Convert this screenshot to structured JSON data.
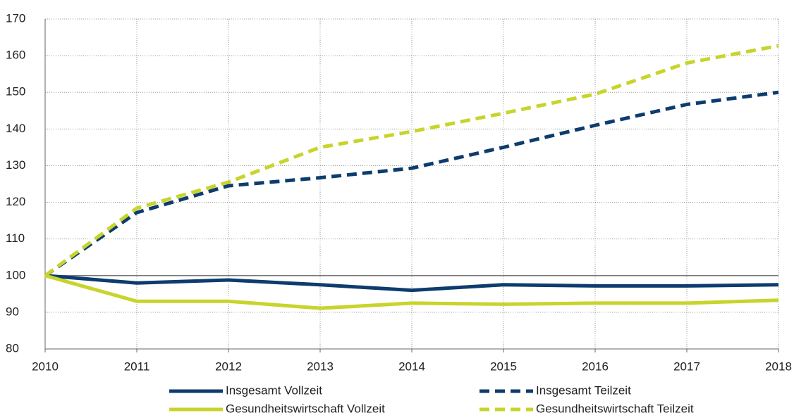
{
  "chart_data": {
    "type": "line",
    "categories": [
      "2010",
      "2011",
      "2012",
      "2013",
      "2014",
      "2015",
      "2016",
      "2017",
      "2018"
    ],
    "series": [
      {
        "name": "Insgesamt Vollzeit",
        "color": "#0d3c6e",
        "dashed": false,
        "values": [
          100,
          98.0,
          98.8,
          97.5,
          96.0,
          97.5,
          97.2,
          97.2,
          97.5
        ]
      },
      {
        "name": "Insgesamt Teilzeit",
        "color": "#0d3c6e",
        "dashed": true,
        "values": [
          100,
          117.2,
          124.5,
          126.7,
          129.3,
          135.0,
          141.0,
          146.7,
          150.0
        ]
      },
      {
        "name": "Gesundheitswirtschaft Vollzeit",
        "color": "#c8d42b",
        "dashed": false,
        "values": [
          100,
          93.0,
          93.0,
          91.1,
          92.5,
          92.2,
          92.5,
          92.5,
          93.3
        ]
      },
      {
        "name": "Gesundheitswirtschaft Teilzeit",
        "color": "#c8d42b",
        "dashed": true,
        "values": [
          100,
          118.4,
          125.5,
          135.0,
          139.3,
          144.3,
          149.5,
          158.0,
          162.7
        ]
      }
    ],
    "ylim": [
      80,
      170
    ],
    "yticks": [
      80,
      90,
      100,
      110,
      120,
      130,
      140,
      150,
      160,
      170
    ],
    "reference_line": 100,
    "grid": true,
    "legend": "bottom"
  }
}
